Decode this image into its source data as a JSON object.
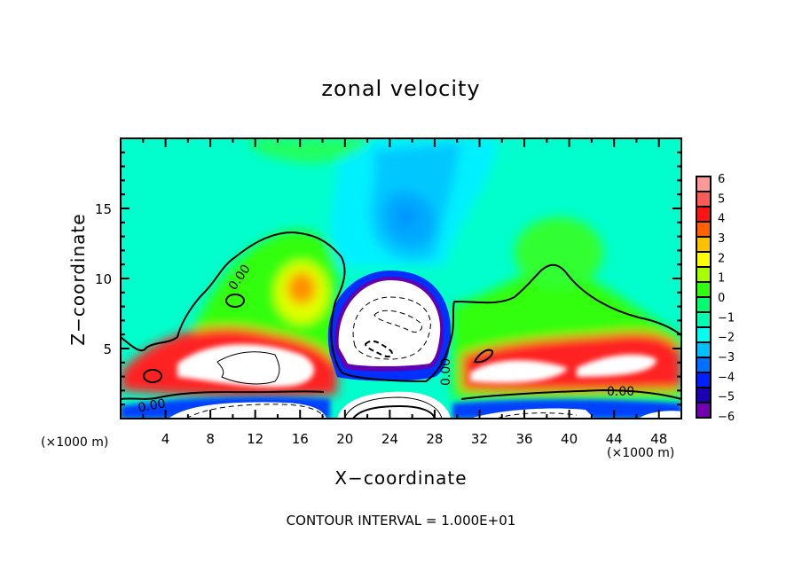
{
  "chart_data": {
    "type": "heatmap",
    "title": "zonal velocity",
    "xlabel": "X−coordinate",
    "ylabel": "Z−coordinate",
    "x_unit_label": "(×1000 m)",
    "z_unit_label": "(×1000 m)",
    "xlim": [
      0,
      50
    ],
    "ylim": [
      0,
      20
    ],
    "x_ticks": [
      4,
      8,
      12,
      16,
      20,
      24,
      28,
      32,
      36,
      40,
      44,
      48
    ],
    "y_ticks": [
      5,
      10,
      15
    ],
    "footer": "CONTOUR INTERVAL = 1.000E+01",
    "contour_label": "0.00",
    "colorbar": {
      "ticks": [
        "6",
        "5",
        "4",
        "3",
        "2",
        "1",
        "0",
        "−1",
        "−2",
        "−3",
        "−4",
        "−5",
        "−6"
      ],
      "levels": [
        6,
        5.5,
        5,
        4.5,
        4,
        3.5,
        3,
        2.5,
        2,
        1.5,
        1,
        0.5,
        0,
        -0.5,
        -1,
        -1.5,
        -2,
        -2.5,
        -3,
        -3.5,
        -4,
        -4.5,
        -5,
        -5.5,
        -6
      ],
      "colors": [
        "#ff9a9a",
        "#ff6a6a",
        "#ff3f3f",
        "#ff1010",
        "#ff0000",
        "#ff3000",
        "#ff6a00",
        "#ff8a00",
        "#ffb000",
        "#ffd000",
        "#ffff00",
        "#d8ff00",
        "#a0ff00",
        "#70ff00",
        "#30ff00",
        "#00ff30",
        "#00ff70",
        "#00ffa0",
        "#00ffd0",
        "#00e8ff",
        "#00b8ff",
        "#0080ff",
        "#0050ff",
        "#0020ff",
        "#0000e0",
        "#1000b0",
        "#300090",
        "#7000b0"
      ]
    },
    "features": [
      {
        "name": "upper negative core",
        "x": 25.5,
        "z": 14.5,
        "value": -3
      },
      {
        "name": "central negative cell (below colorbar min)",
        "x": 24,
        "z": 6.5,
        "value": -10
      },
      {
        "name": "left positive jet",
        "x": 11,
        "z": 3.8,
        "value": 8
      },
      {
        "name": "right positive jet",
        "x": 36,
        "z": 4,
        "value": 7
      },
      {
        "name": "upper-left positive maximum",
        "x": 16,
        "z": 9,
        "value": 3.5
      },
      {
        "name": "near-surface negative layer",
        "x": 12,
        "z": 0.5,
        "value": -8
      },
      {
        "name": "near-surface positive cell",
        "x": 24,
        "z": 0.6,
        "value": 12
      }
    ]
  }
}
